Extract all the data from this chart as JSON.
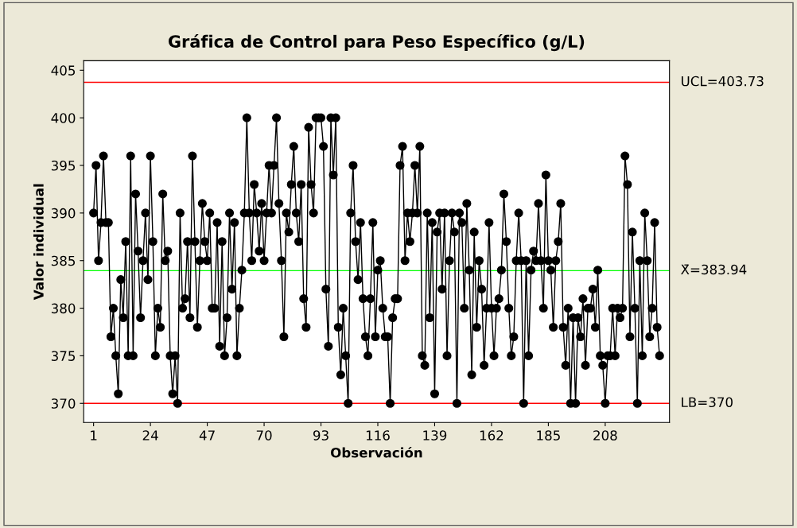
{
  "chart_data": {
    "type": "line",
    "title": "Gráfica de Control para Peso Específico (g/L)",
    "xlabel": "Observación",
    "ylabel": "Valor individual",
    "x": [
      1,
      2,
      3,
      4,
      5,
      6,
      7,
      8,
      9,
      10,
      11,
      12,
      13,
      14,
      15,
      16,
      17,
      18,
      19,
      20,
      21,
      22,
      23,
      24,
      25,
      26,
      27,
      28,
      29,
      30,
      31,
      32,
      33,
      34,
      35,
      36,
      37,
      38,
      39,
      40,
      41,
      42,
      43,
      44,
      45,
      46,
      47,
      48,
      49,
      50,
      51,
      52,
      53,
      54,
      55,
      56,
      57,
      58,
      59,
      60,
      61,
      62,
      63,
      64,
      65,
      66,
      67,
      68,
      69,
      70,
      71,
      72,
      73,
      74,
      75,
      76,
      77,
      78,
      79,
      80,
      81,
      82,
      83,
      84,
      85,
      86,
      87,
      88,
      89,
      90,
      91,
      92,
      93,
      94,
      95,
      96,
      97,
      98,
      99,
      100,
      101,
      102,
      103,
      104,
      105,
      106,
      107,
      108,
      109,
      110,
      111,
      112,
      113,
      114,
      115,
      116,
      117,
      118,
      119,
      120,
      121,
      122,
      123,
      124,
      125,
      126,
      127,
      128,
      129,
      130,
      131,
      132,
      133,
      134,
      135,
      136,
      137,
      138,
      139,
      140,
      141,
      142,
      143,
      144,
      145,
      146,
      147,
      148,
      149,
      150,
      151,
      152,
      153,
      154,
      155,
      156,
      157,
      158,
      159,
      160,
      161,
      162,
      163,
      164,
      165,
      166,
      167,
      168,
      169,
      170,
      171,
      172,
      173,
      174,
      175,
      176,
      177,
      178,
      179,
      180,
      181,
      182,
      183,
      184,
      185,
      186,
      187,
      188,
      189,
      190,
      191,
      192,
      193,
      194,
      195,
      196,
      197,
      198,
      199,
      200,
      201,
      202,
      203,
      204,
      205,
      206,
      207,
      208,
      209,
      210,
      211,
      212,
      213,
      214,
      215,
      216,
      217,
      218,
      219,
      220,
      221,
      222,
      223,
      224,
      225,
      226,
      227,
      228,
      229,
      230
    ],
    "series": [
      {
        "color": "#000000",
        "values": [
          390,
          395,
          385,
          389,
          396,
          389,
          389,
          377,
          380,
          375,
          371,
          383,
          379,
          387,
          375,
          396,
          375,
          392,
          386,
          379,
          385,
          390,
          383,
          396,
          387,
          375,
          380,
          378,
          392,
          385,
          386,
          375,
          371,
          375,
          370,
          390,
          380,
          381,
          387,
          379,
          396,
          387,
          378,
          385,
          391,
          387,
          385,
          390,
          380,
          380,
          389,
          376,
          387,
          375,
          379,
          390,
          382,
          389,
          375,
          380,
          384,
          390,
          400,
          390,
          385,
          393,
          390,
          386,
          391,
          385,
          390,
          395,
          390,
          395,
          400,
          391,
          385,
          377,
          390,
          388,
          393,
          397,
          390,
          387,
          393,
          381,
          378,
          399,
          393,
          390,
          400,
          400,
          400,
          397,
          382,
          376,
          400,
          394,
          400,
          378,
          373,
          380,
          375,
          370,
          390,
          395,
          387,
          383,
          389,
          381,
          377,
          375,
          381,
          389,
          377,
          384,
          385,
          380,
          377,
          377,
          370,
          379,
          381,
          381,
          395,
          397,
          385,
          390,
          387,
          390,
          395,
          390,
          397,
          375,
          374,
          390,
          379,
          389,
          371,
          388,
          390,
          382,
          390,
          375,
          385,
          390,
          388,
          370,
          390,
          389,
          380,
          391,
          384,
          373,
          388,
          378,
          385,
          382,
          374,
          380,
          389,
          380,
          375,
          380,
          381,
          384,
          392,
          387,
          380,
          375,
          377,
          385,
          390,
          385,
          370,
          385,
          375,
          384,
          386,
          385,
          391,
          385,
          380,
          394,
          385,
          384,
          378,
          385,
          387,
          391,
          378,
          374,
          380,
          370,
          379,
          370,
          379,
          377,
          381,
          374,
          380,
          380,
          382,
          378,
          384,
          375,
          374,
          370,
          375,
          375,
          380,
          375,
          380,
          379,
          380,
          396,
          393,
          377,
          388,
          380,
          370,
          385,
          375,
          390,
          385,
          377,
          380,
          389,
          378,
          375
        ]
      }
    ],
    "marker": "circle",
    "line_style": "solid",
    "xlim": [
      -3,
      234
    ],
    "xticks": [
      1,
      24,
      47,
      70,
      93,
      116,
      139,
      162,
      185,
      208
    ],
    "ylim": [
      368,
      406
    ],
    "yticks": [
      370,
      375,
      380,
      385,
      390,
      395,
      400,
      405
    ],
    "ref_lines": [
      {
        "axis": "y",
        "value": 403.73,
        "label": "UCL=403.73",
        "color": "#ff0000"
      },
      {
        "axis": "y",
        "value": 383.94,
        "label": "X̄=383.94",
        "color": "#00ff00"
      },
      {
        "axis": "y",
        "value": 370,
        "label": "LB=370",
        "color": "#ff0000"
      }
    ],
    "grid": false,
    "legend": false
  }
}
